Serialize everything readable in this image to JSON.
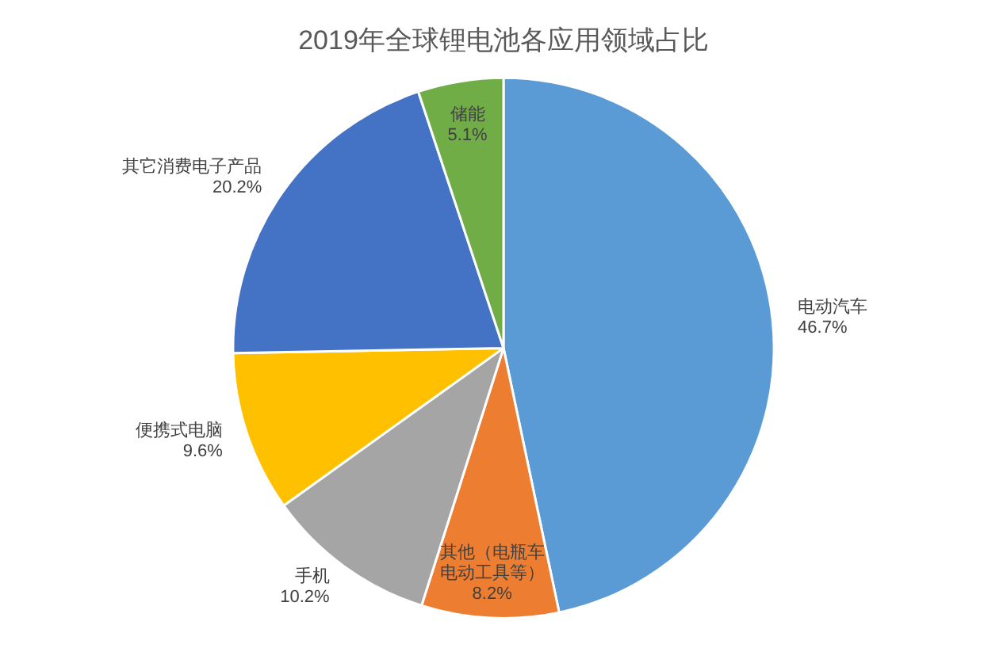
{
  "chart_data": {
    "type": "pie",
    "title": "2019年全球锂电池各应用领域占比",
    "categories": [
      "电动汽车",
      "其他（电瓶车电动工具等）",
      "手机",
      "便携式电脑",
      "其它消费电子产品",
      "储能"
    ],
    "values": [
      46.7,
      8.2,
      10.2,
      9.6,
      20.2,
      5.1
    ],
    "colors": [
      "#5b9bd5",
      "#ed7d31",
      "#a5a5a5",
      "#ffc000",
      "#4472c4",
      "#70ad47"
    ],
    "value_labels": [
      "46.7%",
      "8.2%",
      "10.2%",
      "9.6%",
      "20.2%",
      "5.1%"
    ],
    "legend": false
  }
}
